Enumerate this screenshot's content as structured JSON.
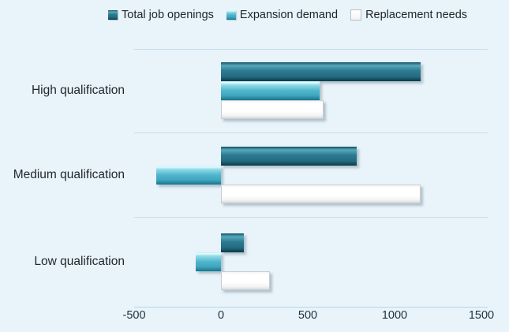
{
  "chart_data": {
    "type": "bar",
    "orientation": "horizontal",
    "title": "",
    "categories": [
      "High qualification",
      "Medium qualification",
      "Low qualification"
    ],
    "series": [
      {
        "name": "Total job openings",
        "color": "#26748a",
        "values": [
          1150,
          780,
          130
        ]
      },
      {
        "name": "Expansion demand",
        "color": "#4cb4cb",
        "values": [
          570,
          -375,
          -145
        ]
      },
      {
        "name": "Replacement needs",
        "color": "#ffffff",
        "values": [
          590,
          1150,
          280
        ]
      }
    ],
    "xlim": [
      -500,
      1500
    ],
    "xticks": [
      -500,
      0,
      500,
      1000,
      1500
    ],
    "xtick_labels": [
      "-500",
      "0",
      "500",
      "1000",
      "1500"
    ],
    "legend_position": "top",
    "grid": "category-separator-lines",
    "bar_style": "3d-bevel-glossy",
    "background_color": "#e9f3fa",
    "gridline_color": "#c3dded",
    "text_color": "#1f262c"
  }
}
